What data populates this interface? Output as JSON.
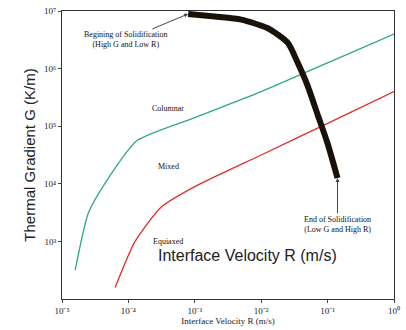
{
  "chart_data": {
    "type": "line",
    "log": true,
    "grid": false,
    "x_title": "Interface Velocity R (m/s)",
    "y_title": "Thermal Gradient G (K/m)",
    "overlay_text": "Interface Velocity R (m/s)",
    "xlim": [
      1e-05,
      1
    ],
    "ylim": [
      100,
      10000000
    ],
    "xticks": [
      {
        "value": 1e-05,
        "label": "10⁻⁵"
      },
      {
        "value": 0.0001,
        "label": "10⁻⁴"
      },
      {
        "value": 0.001,
        "label": "10⁻³"
      },
      {
        "value": 0.01,
        "label": "10⁻²"
      },
      {
        "value": 0.1,
        "label": "10⁻¹"
      },
      {
        "value": 1,
        "label": "10⁰"
      }
    ],
    "yticks": [
      {
        "value": 1000,
        "label": "10³"
      },
      {
        "value": 10000,
        "label": "10⁴"
      },
      {
        "value": 100000,
        "label": "10⁵"
      },
      {
        "value": 1000000,
        "label": "10⁶"
      },
      {
        "value": 10000000,
        "label": "10⁷"
      }
    ],
    "series": [
      {
        "color": "#2bab7d",
        "line_style": "solid",
        "x": [
          1.58e-05,
          2.51e-05,
          5.01e-05,
          0.000135,
          0.001,
          0.01,
          0.1,
          1
        ],
        "values": [
          316,
          3162,
          12589,
          56234,
          141254,
          398107,
          1258925,
          3981072
        ]
      },
      {
        "color": "#d9312b",
        "line_style": "solid",
        "x": [
          6.31e-05,
          0.000126,
          0.000316,
          0.001,
          0.01,
          0.1,
          1
        ],
        "values": [
          158,
          1000,
          3981,
          8913,
          31623,
          112202,
          398107
        ]
      },
      {
        "color": "#1a1208",
        "line_style": "thick",
        "x": [
          0.000794,
          0.002,
          0.005,
          0.0126,
          0.0251,
          0.0355,
          0.0501,
          0.0708,
          0.1,
          0.141
        ],
        "values": [
          8900000,
          8000000,
          7079458,
          5011872,
          2818383,
          1258925,
          501187,
          158489,
          50119,
          12589
        ]
      }
    ],
    "annotations": [
      {
        "lines": [
          "Begining of Solidification",
          "(High G and Low R)"
        ]
      },
      {
        "lines": [
          "End of Solidification",
          "(Low G and High R)"
        ]
      },
      {
        "lines": [
          "Columnar"
        ]
      },
      {
        "lines": [
          "Mixed"
        ]
      },
      {
        "lines": [
          "Equiaxed"
        ]
      }
    ]
  }
}
